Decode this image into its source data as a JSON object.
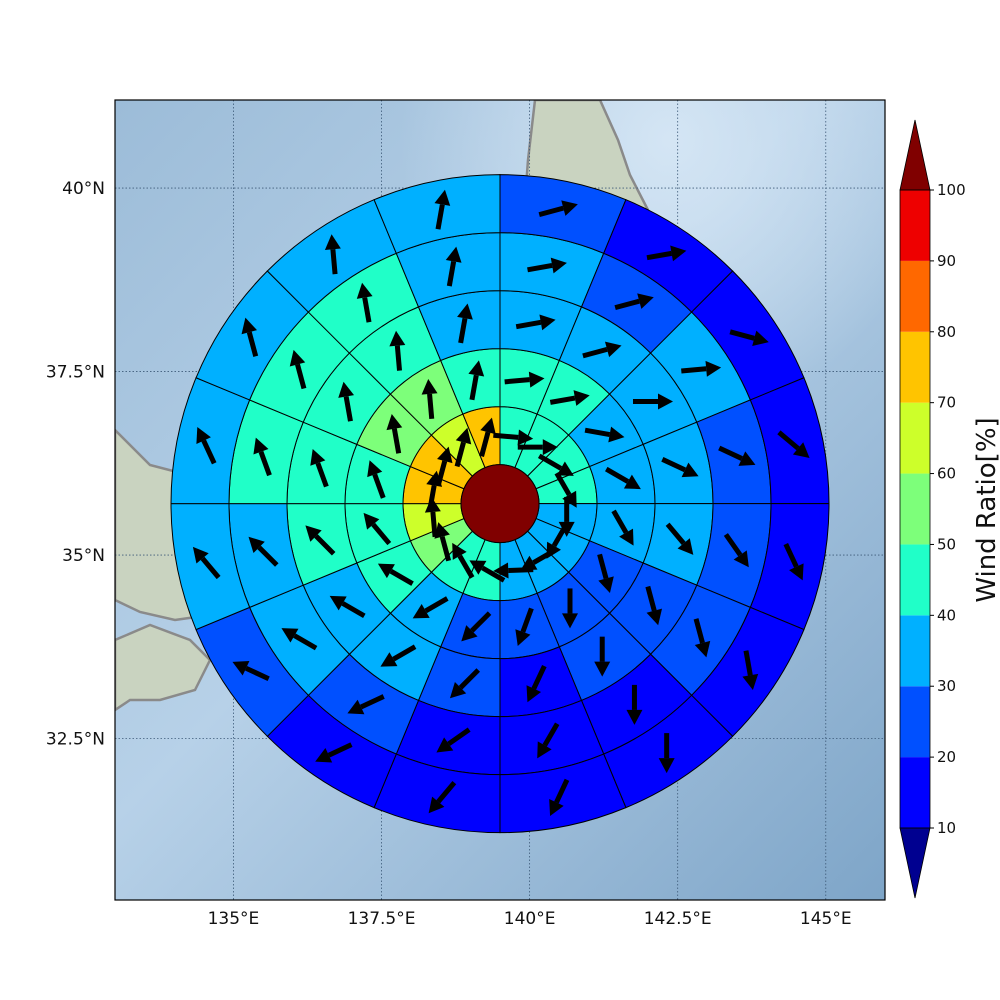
{
  "map": {
    "lon_range": [
      133.0,
      146.0
    ],
    "lat_range": [
      30.3,
      41.2
    ],
    "lon_ticks": [
      {
        "value": 135.0,
        "label": "135°E"
      },
      {
        "value": 137.5,
        "label": "137.5°E"
      },
      {
        "value": 140.0,
        "label": "140°E"
      },
      {
        "value": 142.5,
        "label": "142.5°E"
      },
      {
        "value": 145.0,
        "label": "145°E"
      }
    ],
    "lat_ticks": [
      {
        "value": 40.0,
        "label": "40°N"
      },
      {
        "value": 37.5,
        "label": "37.5°N"
      },
      {
        "value": 35.0,
        "label": "35°N"
      },
      {
        "value": 32.5,
        "label": "32.5°N"
      }
    ],
    "gridlines": "dotted",
    "background": "shaded relief, ocean blue",
    "coastline_color": "#888888"
  },
  "chart_data": {
    "type": "heatmap",
    "description_units": "Wind Ratio[%]",
    "center": {
      "lon": 139.5,
      "lat": 35.7
    },
    "center_value": 100,
    "rings": [
      {
        "values": [
          42,
          42,
          42,
          42,
          38,
          38,
          38,
          38,
          42,
          48,
          55,
          62,
          70,
          75,
          68,
          70
        ]
      },
      {
        "values": [
          42,
          44,
          38,
          38,
          36,
          22,
          22,
          22,
          25,
          38,
          42,
          45,
          48,
          50,
          54,
          46
        ]
      },
      {
        "values": [
          32,
          36,
          38,
          35,
          34,
          20,
          20,
          18,
          20,
          30,
          36,
          43,
          46,
          44,
          48,
          38
        ]
      },
      {
        "values": [
          30,
          28,
          30,
          28,
          22,
          20,
          14,
          12,
          16,
          22,
          30,
          36,
          42,
          44,
          45,
          35
        ]
      },
      {
        "values": [
          20,
          12,
          12,
          12,
          11,
          11,
          10,
          10,
          11,
          16,
          24,
          34,
          36,
          32,
          35,
          33
        ]
      }
    ],
    "arrow_angles_deg": [
      [
        95,
        90,
        120,
        150,
        180,
        210,
        240,
        268,
        300,
        330,
        345,
        355,
        10,
        15,
        15,
        15
      ],
      [
        85,
        80,
        100,
        120,
        150,
        165,
        180,
        200,
        225,
        240,
        300,
        320,
        340,
        350,
        355,
        10
      ],
      [
        80,
        75,
        90,
        115,
        140,
        165,
        180,
        205,
        225,
        240,
        300,
        315,
        340,
        350,
        355,
        10
      ],
      [
        80,
        75,
        85,
        115,
        145,
        165,
        180,
        210,
        235,
        245,
        300,
        315,
        340,
        345,
        350,
        10
      ],
      [
        75,
        80,
        105,
        130,
        155,
        170,
        180,
        205,
        220,
        245,
        295,
        320,
        335,
        345,
        355,
        10
      ]
    ],
    "colorbar": {
      "label": "Wind Ratio[%]",
      "bounds": [
        10,
        20,
        30,
        40,
        50,
        60,
        70,
        80,
        90,
        100
      ],
      "colors": [
        "#0000ff",
        "#0050ff",
        "#00b0ff",
        "#20ffc8",
        "#7dff7a",
        "#cdff2a",
        "#ffc400",
        "#ff6800",
        "#ee0000"
      ],
      "under_color": "#000090",
      "over_color": "#800000",
      "extend": "both"
    }
  }
}
